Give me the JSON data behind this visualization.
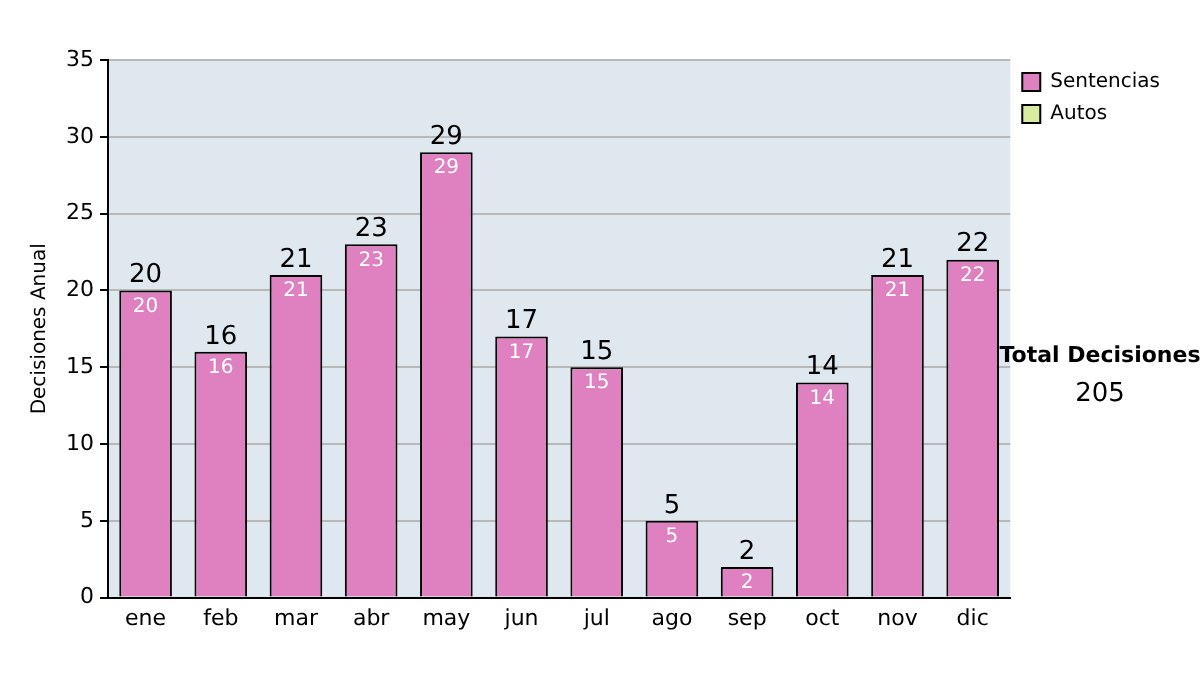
{
  "chart_data": {
    "type": "bar",
    "stacked": true,
    "ylabel": "Decisiones Anual",
    "categories": [
      "ene",
      "feb",
      "mar",
      "abr",
      "may",
      "jun",
      "jul",
      "ago",
      "sep",
      "oct",
      "nov",
      "dic"
    ],
    "series": [
      {
        "name": "Sentencias",
        "color": "#df80c0",
        "values": [
          20,
          16,
          21,
          23,
          29,
          17,
          15,
          5,
          2,
          14,
          21,
          22
        ],
        "value_labels": [
          "20",
          "16",
          "21",
          "23",
          "29",
          "17",
          "15",
          "5",
          "2",
          "14",
          "21",
          "22"
        ]
      },
      {
        "name": "Autos",
        "color": "#d8eca0",
        "values": [
          0,
          0,
          0,
          0,
          0,
          0,
          0,
          0,
          0,
          0,
          0,
          0
        ]
      }
    ],
    "totals": [
      "20",
      "16",
      "21",
      "23",
      "29",
      "17",
      "15",
      "5",
      "2",
      "14",
      "21",
      "22"
    ],
    "ylim": [
      0,
      35
    ],
    "yticks": [
      0,
      5,
      10,
      15,
      20,
      25,
      30,
      35
    ],
    "grid": "y",
    "legend": "right",
    "annotations": [
      "Total Decisiones",
      "205"
    ]
  }
}
